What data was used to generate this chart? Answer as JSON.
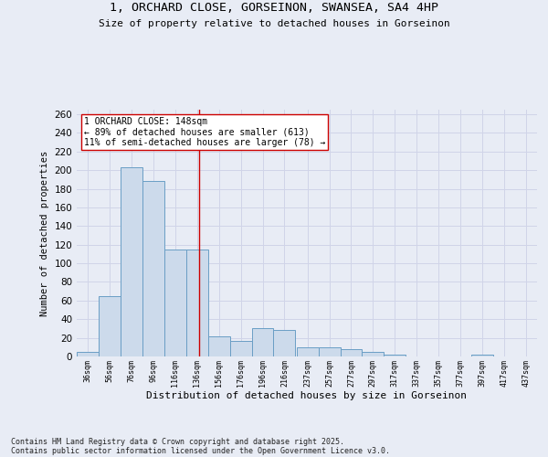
{
  "title_line1": "1, ORCHARD CLOSE, GORSEINON, SWANSEA, SA4 4HP",
  "title_line2": "Size of property relative to detached houses in Gorseinon",
  "xlabel": "Distribution of detached houses by size in Gorseinon",
  "ylabel": "Number of detached properties",
  "bar_edges": [
    36,
    56,
    76,
    96,
    116,
    136,
    156,
    176,
    196,
    216,
    237,
    257,
    277,
    297,
    317,
    337,
    357,
    377,
    397,
    417,
    437
  ],
  "bar_heights": [
    5,
    65,
    203,
    188,
    115,
    115,
    22,
    17,
    30,
    28,
    10,
    10,
    8,
    5,
    2,
    0,
    0,
    0,
    2,
    0,
    0
  ],
  "bar_color": "#ccdaeb",
  "bar_edge_color": "#6a9ec5",
  "grid_color": "#d0d4e8",
  "background_color": "#e8ecf5",
  "vline_x": 148,
  "vline_color": "#cc0000",
  "annotation_text": "1 ORCHARD CLOSE: 148sqm\n← 89% of detached houses are smaller (613)\n11% of semi-detached houses are larger (78) →",
  "annotation_box_color": "#ffffff",
  "annotation_box_edge": "#cc0000",
  "ylim": [
    0,
    265
  ],
  "yticks": [
    0,
    20,
    40,
    60,
    80,
    100,
    120,
    140,
    160,
    180,
    200,
    220,
    240,
    260
  ],
  "footer_line1": "Contains HM Land Registry data © Crown copyright and database right 2025.",
  "footer_line2": "Contains public sector information licensed under the Open Government Licence v3.0."
}
